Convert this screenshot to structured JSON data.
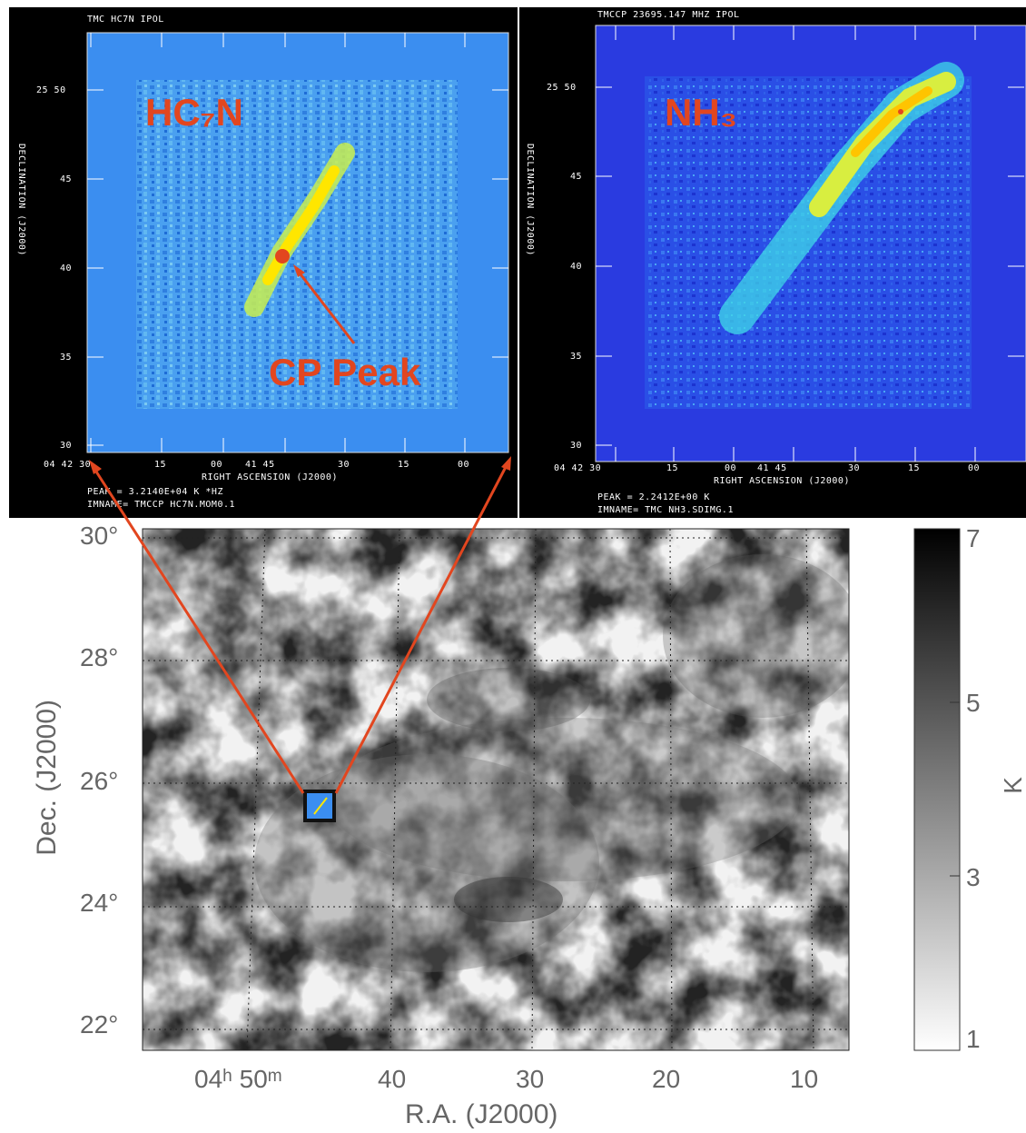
{
  "left_panel": {
    "header": "TMC HC7N IPOL",
    "dec_ticks": [
      "25 50",
      "45",
      "40",
      "35",
      "30"
    ],
    "ra_ticks": [
      "04 42 30",
      "15",
      "00",
      "41 45",
      "30",
      "15",
      "00"
    ],
    "ylabel": "DECLINATION (J2000)",
    "xlabel": "RIGHT ASCENSION (J2000)",
    "peak": "PEAK = 3.2140E+04 K *HZ",
    "imname": "IMNAME= TMCCP HC7N.MOM0.1",
    "molecule_label": "HC₇N",
    "annotation": "CP Peak"
  },
  "right_panel": {
    "header": "TMCCP 23695.147 MHZ  IPOL",
    "dec_ticks": [
      "25 50",
      "45",
      "40",
      "35",
      "30"
    ],
    "ra_ticks": [
      "04 42 30",
      "15",
      "00",
      "41 45",
      "30",
      "15",
      "00"
    ],
    "ylabel": "DECLINATION (J2000)",
    "xlabel": "RIGHT ASCENSION (J2000)",
    "peak": "PEAK = 2.2412E+00 K",
    "imname": "IMNAME= TMC NH3.SDIMG.1",
    "molecule_label": "NH₃"
  },
  "main_map": {
    "ylabel": "Dec. (J2000)",
    "xlabel": "R.A. (J2000)",
    "y_ticks": [
      "30°",
      "28°",
      "26°",
      "24°",
      "22°"
    ],
    "x_ticks": [
      "04ʰ 50ᵐ",
      "40",
      "30",
      "20",
      "10"
    ]
  },
  "colorbar": {
    "unit": "K",
    "ticks": [
      "7",
      "5",
      "3",
      "1"
    ]
  },
  "colors": {
    "arrow": "#e2461f",
    "label_red": "#e2461f",
    "hc7n_bg": "#3b8ef0",
    "nh3_bg": "#2a3be0"
  }
}
